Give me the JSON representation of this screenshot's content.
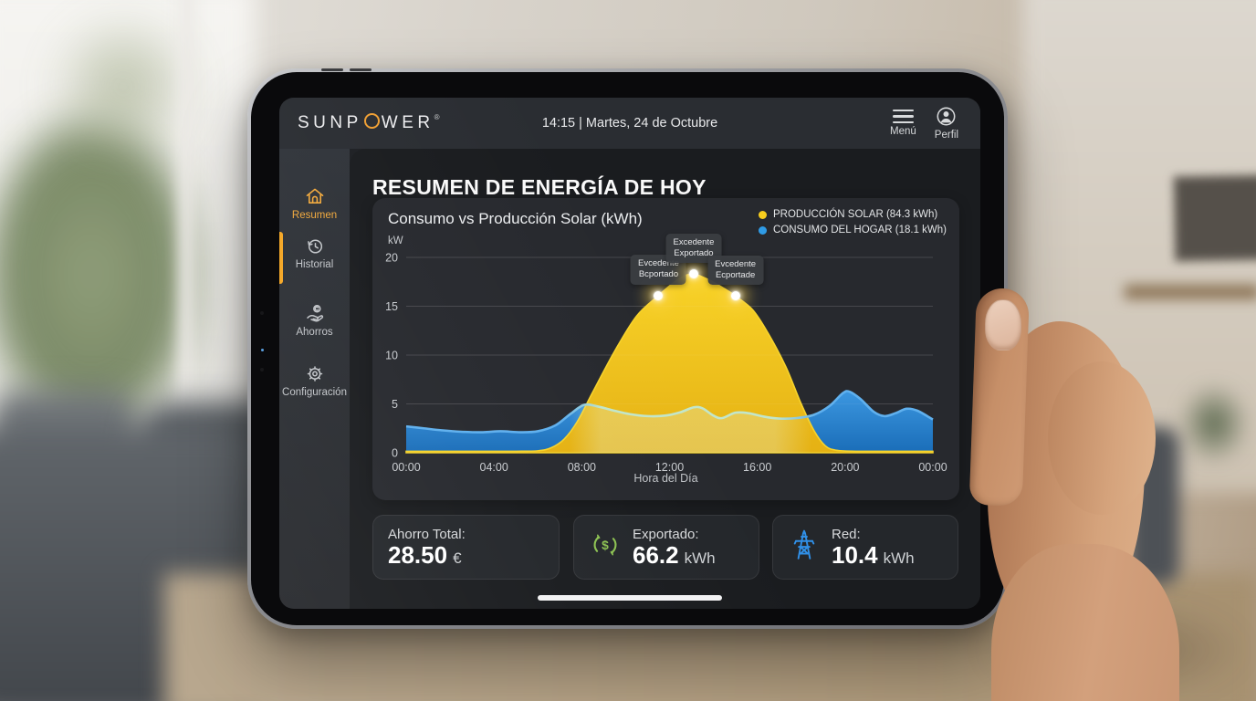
{
  "topbar": {
    "logo": {
      "pre": "SUNP",
      "o_ring": "orange-ring",
      "post": "WER",
      "reg": "®"
    },
    "status": "14:15 | Martes, 24 de Octubre",
    "menu_label": "Menú",
    "profile_label": "Perfil"
  },
  "sidebar": {
    "items": [
      {
        "id": "resumen",
        "label": "Resumen",
        "icon": "home-icon",
        "active": true
      },
      {
        "id": "historial",
        "label": "Historial",
        "icon": "history-clock-icon",
        "active": false
      },
      {
        "id": "ahorros",
        "label": "Ahorros",
        "icon": "hand-coin-icon",
        "active": false
      },
      {
        "id": "configuracion",
        "label": "Configuración",
        "icon": "gear-icon",
        "active": false
      }
    ]
  },
  "main": {
    "heading": "RESUMEN DE ENERGÍA DE HOY"
  },
  "chart_data": {
    "type": "area",
    "title": "Consumo vs Producción Solar (kWh)",
    "unit_label": "kW",
    "xlabel": "Hora del Día",
    "ylim": [
      0,
      20
    ],
    "yticks": [
      0,
      5,
      10,
      15,
      20
    ],
    "xticks": [
      {
        "hour": 0,
        "label": "00:00"
      },
      {
        "hour": 4,
        "label": "04:00"
      },
      {
        "hour": 8,
        "label": "08:00"
      },
      {
        "hour": 12,
        "label": "12:00"
      },
      {
        "hour": 16,
        "label": "16:00"
      },
      {
        "hour": 20,
        "label": "20:00"
      },
      {
        "hour": 24,
        "label": "00:00"
      }
    ],
    "legend": [
      {
        "label": "PRODUCCIÓN SOLAR (84.3 kWh)",
        "color": "#f7cd1e"
      },
      {
        "label": "CONSUMO DEL HOGAR (18.1 kWh)",
        "color": "#2f9be6"
      }
    ],
    "series": [
      {
        "name": "produccion_solar",
        "color": "#f2c31d",
        "points": [
          [
            0,
            0.15
          ],
          [
            1,
            0.15
          ],
          [
            2,
            0.15
          ],
          [
            3,
            0.15
          ],
          [
            4,
            0.15
          ],
          [
            5,
            0.15
          ],
          [
            6,
            0.2
          ],
          [
            6.6,
            0.5
          ],
          [
            7.2,
            1.4
          ],
          [
            7.8,
            3.2
          ],
          [
            8.5,
            6.2
          ],
          [
            9.5,
            10.4
          ],
          [
            10.5,
            14
          ],
          [
            11.5,
            16.1
          ],
          [
            12.3,
            17.6
          ],
          [
            13,
            18.3
          ],
          [
            13.7,
            17.8
          ],
          [
            14.5,
            16.8
          ],
          [
            15,
            16.05
          ],
          [
            15.8,
            14.6
          ],
          [
            16.5,
            12.2
          ],
          [
            17.3,
            8.8
          ],
          [
            18,
            5
          ],
          [
            18.6,
            2.2
          ],
          [
            19.1,
            0.7
          ],
          [
            19.6,
            0.25
          ],
          [
            20.5,
            0.15
          ],
          [
            21.5,
            0.15
          ],
          [
            22.5,
            0.15
          ],
          [
            23.2,
            0.15
          ],
          [
            24,
            0.15
          ]
        ]
      },
      {
        "name": "consumo_hogar",
        "color": "#2a86d4",
        "points": [
          [
            0,
            2.7
          ],
          [
            0.8,
            2.5
          ],
          [
            1.6,
            2.3
          ],
          [
            2.5,
            2.15
          ],
          [
            3.5,
            2.1
          ],
          [
            4.3,
            2.2
          ],
          [
            5.2,
            2.1
          ],
          [
            6,
            2.2
          ],
          [
            6.8,
            2.8
          ],
          [
            7.5,
            4
          ],
          [
            8.1,
            4.9
          ],
          [
            8.7,
            4.75
          ],
          [
            9.4,
            4.35
          ],
          [
            10.2,
            3.95
          ],
          [
            11,
            3.75
          ],
          [
            11.8,
            3.8
          ],
          [
            12.5,
            4.15
          ],
          [
            13.1,
            4.65
          ],
          [
            13.5,
            4.55
          ],
          [
            14,
            3.8
          ],
          [
            14.4,
            3.55
          ],
          [
            15,
            4.1
          ],
          [
            15.6,
            4.05
          ],
          [
            16.3,
            3.7
          ],
          [
            17,
            3.5
          ],
          [
            17.8,
            3.55
          ],
          [
            18.6,
            3.9
          ],
          [
            19.3,
            4.8
          ],
          [
            19.9,
            6.1
          ],
          [
            20.2,
            6.25
          ],
          [
            20.7,
            5.5
          ],
          [
            21.3,
            4.2
          ],
          [
            21.8,
            3.75
          ],
          [
            22.3,
            4.05
          ],
          [
            22.8,
            4.5
          ],
          [
            23.3,
            4.3
          ],
          [
            24,
            3.4
          ]
        ]
      }
    ],
    "annotations": [
      {
        "hour": 11.5,
        "value": 16.1,
        "lines": [
          "Evcedente",
          "Bcportado"
        ]
      },
      {
        "hour": 13.1,
        "value": 18.3,
        "lines": [
          "Excedente",
          "Exportado"
        ]
      },
      {
        "hour": 15.0,
        "value": 16.05,
        "lines": [
          "Evcedente",
          "Ecportade"
        ]
      }
    ]
  },
  "stats": [
    {
      "label": "Ahorro Total:",
      "value": "28.50",
      "unit": "€",
      "icon": "none"
    },
    {
      "label": "Exportado:",
      "value": "66.2",
      "unit": "kWh",
      "icon": "export-cycle-icon",
      "icon_color": "#8cc152"
    },
    {
      "label": "Red:",
      "value": "10.4",
      "unit": "kWh",
      "icon": "power-tower-icon",
      "icon_color": "#3090e8"
    }
  ],
  "colors": {
    "accent_orange": "#f5a623",
    "solar_yellow": "#f2c31d",
    "consumption_blue": "#2a86d4",
    "export_green": "#8cc152",
    "grid_blue": "#3090e8"
  }
}
